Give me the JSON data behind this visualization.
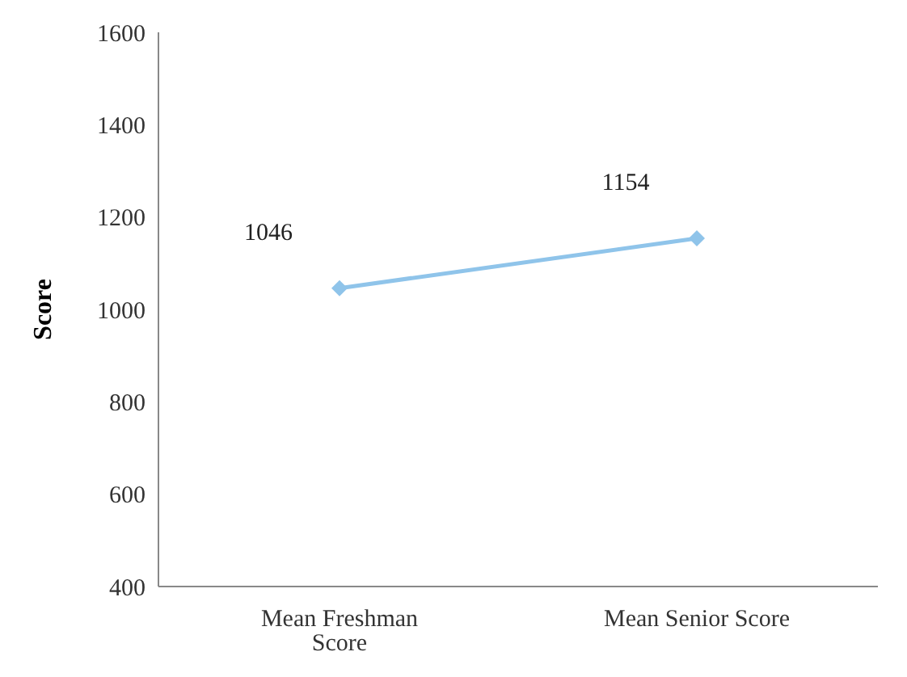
{
  "chart_data": {
    "type": "line",
    "ylabel": "Score",
    "categories": [
      "Mean Freshman Score",
      "Mean Senior Score"
    ],
    "series": [
      {
        "color": "#8fc4ea",
        "values": [
          1046,
          1154
        ]
      }
    ],
    "ylim": [
      400,
      1600
    ],
    "yticks": [
      400,
      600,
      800,
      1000,
      1200,
      1400,
      1600
    ],
    "grid": false,
    "legend": false,
    "marker": "diamond",
    "line_style": "solid",
    "data_labels": true
  }
}
